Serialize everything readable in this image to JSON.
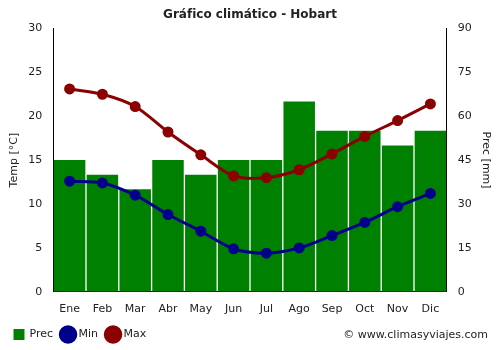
{
  "chart_data": {
    "type": "bar",
    "title": "Gráfico climático - Hobart",
    "y_label": "Temp [°C]",
    "y2_label": "Prec [mm]",
    "annotations": [
      "© www.climasyviajes.com"
    ],
    "categories": [
      "Ene",
      "Feb",
      "Mar",
      "Abr",
      "May",
      "Jun",
      "Jul",
      "Ago",
      "Sep",
      "Oct",
      "Nov",
      "Dic"
    ],
    "series": [
      {
        "name": "Prec",
        "type": "bar",
        "color": "#008000",
        "axis": "y2",
        "values": [
          45,
          40,
          35,
          45,
          40,
          45,
          45,
          65,
          55,
          55,
          50,
          55
        ]
      },
      {
        "name": "Min",
        "type": "line",
        "color": "#00008b",
        "marker": "circle",
        "values": [
          12.6,
          12.4,
          11.0,
          8.8,
          6.9,
          4.9,
          4.4,
          5.0,
          6.4,
          7.9,
          9.7,
          11.2
        ]
      },
      {
        "name": "Max",
        "type": "line",
        "color": "#8b0000",
        "marker": "circle",
        "values": [
          23.1,
          22.5,
          21.1,
          18.2,
          15.6,
          13.2,
          13.0,
          13.9,
          15.7,
          17.7,
          19.5,
          21.4
        ]
      }
    ],
    "ylim": [
      0,
      30
    ],
    "yticks": [
      0,
      5,
      10,
      15,
      20,
      25,
      30
    ],
    "y2lim": [
      0,
      90
    ],
    "y2ticks": [
      0,
      15,
      30,
      45,
      60,
      75,
      90
    ],
    "grid": false,
    "legend": "bottom"
  }
}
